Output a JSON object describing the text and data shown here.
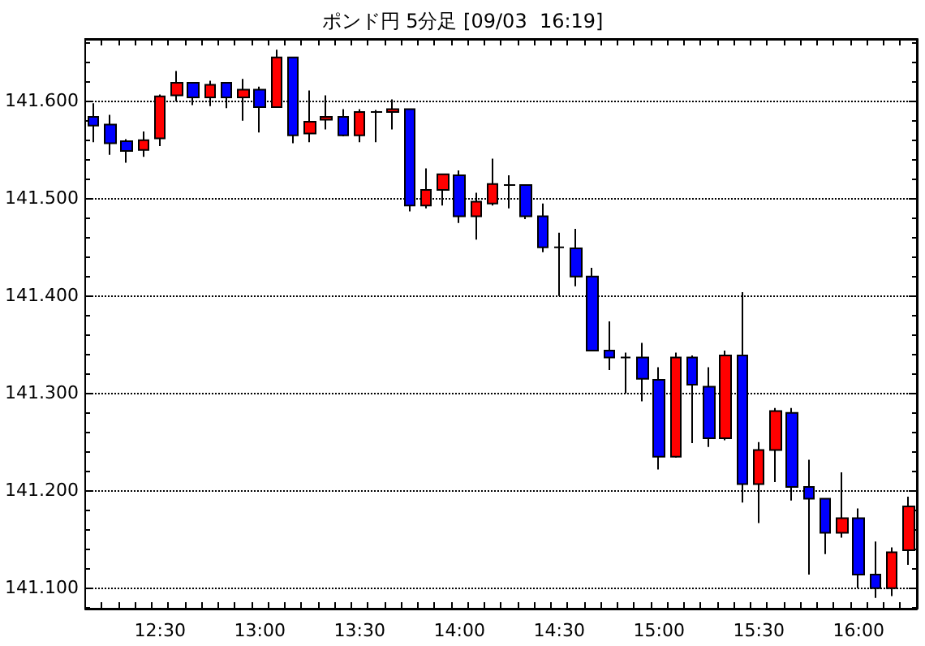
{
  "chart_data": {
    "type": "candlestick",
    "title": "ポンド円 5分足 [09/03  16:19]",
    "categories": [
      null,
      null,
      null,
      null,
      "12:30",
      null,
      null,
      null,
      null,
      null,
      "13:00",
      null,
      null,
      null,
      null,
      null,
      "13:30",
      null,
      null,
      null,
      null,
      null,
      "14:00",
      null,
      null,
      null,
      null,
      null,
      "14:30",
      null,
      null,
      null,
      null,
      null,
      "15:00",
      null,
      null,
      null,
      null,
      null,
      "15:30",
      null,
      null,
      null,
      null,
      null,
      "16:00",
      null,
      null,
      null
    ],
    "ohlc": [
      [
        141.583,
        141.597,
        141.557,
        141.574
      ],
      [
        141.575,
        141.585,
        141.544,
        141.556
      ],
      [
        141.558,
        141.56,
        141.536,
        141.548
      ],
      [
        141.549,
        141.568,
        141.542,
        141.559
      ],
      [
        141.561,
        141.606,
        141.553,
        141.604
      ],
      [
        141.605,
        141.63,
        141.599,
        141.618
      ],
      [
        141.618,
        141.618,
        141.595,
        141.603
      ],
      [
        141.603,
        141.62,
        141.594,
        141.616
      ],
      [
        141.618,
        141.618,
        141.592,
        141.603
      ],
      [
        141.603,
        141.622,
        141.579,
        141.611
      ],
      [
        141.611,
        141.614,
        141.567,
        141.593
      ],
      [
        141.593,
        141.652,
        141.593,
        141.644
      ],
      [
        141.644,
        141.644,
        141.556,
        141.564
      ],
      [
        141.566,
        141.61,
        141.557,
        141.578
      ],
      [
        141.58,
        141.605,
        141.57,
        141.583
      ],
      [
        141.583,
        141.591,
        141.563,
        141.564
      ],
      [
        141.564,
        141.591,
        141.557,
        141.588
      ],
      [
        141.588,
        141.59,
        141.557,
        141.588
      ],
      [
        141.588,
        141.601,
        141.57,
        141.591
      ],
      [
        141.591,
        141.591,
        141.486,
        141.492
      ],
      [
        141.492,
        141.53,
        141.489,
        141.508
      ],
      [
        141.508,
        141.524,
        141.492,
        141.524
      ],
      [
        141.523,
        141.528,
        141.474,
        141.481
      ],
      [
        141.481,
        141.505,
        141.457,
        141.496
      ],
      [
        141.494,
        141.54,
        141.492,
        141.514
      ],
      [
        141.513,
        141.523,
        141.489,
        141.513
      ],
      [
        141.513,
        141.513,
        141.478,
        141.481
      ],
      [
        141.481,
        141.494,
        141.444,
        141.449
      ],
      [
        141.449,
        141.464,
        141.399,
        141.449
      ],
      [
        141.448,
        141.468,
        141.409,
        141.419
      ],
      [
        141.419,
        141.428,
        141.343,
        141.343
      ],
      [
        141.343,
        141.373,
        141.323,
        141.336
      ],
      [
        141.336,
        141.341,
        141.299,
        141.336
      ],
      [
        141.336,
        141.351,
        141.291,
        141.314
      ],
      [
        141.313,
        141.326,
        141.221,
        141.234
      ],
      [
        141.234,
        141.341,
        141.233,
        141.336
      ],
      [
        141.336,
        141.338,
        141.248,
        141.308
      ],
      [
        141.306,
        141.326,
        141.244,
        141.253
      ],
      [
        141.253,
        141.343,
        141.251,
        141.338
      ],
      [
        141.338,
        141.403,
        141.187,
        141.206
      ],
      [
        141.206,
        141.249,
        141.166,
        141.241
      ],
      [
        141.241,
        141.284,
        141.208,
        141.281
      ],
      [
        141.279,
        141.284,
        141.189,
        141.203
      ],
      [
        141.203,
        141.231,
        141.113,
        141.191
      ],
      [
        141.191,
        141.191,
        141.134,
        141.156
      ],
      [
        141.156,
        141.218,
        141.151,
        141.171
      ],
      [
        141.171,
        141.181,
        141.099,
        141.113
      ],
      [
        141.113,
        141.147,
        141.089,
        141.099
      ],
      [
        141.099,
        141.141,
        141.091,
        141.136
      ],
      [
        141.138,
        141.193,
        141.123,
        141.183
      ]
    ],
    "colors": [
      "#0000ff",
      "#0000ff",
      "#0000ff",
      "#ff0000",
      "#ff0000",
      "#ff0000",
      "#0000ff",
      "#ff0000",
      "#0000ff",
      "#ff0000",
      "#0000ff",
      "#ff0000",
      "#0000ff",
      "#ff0000",
      "#ff0000",
      "#0000ff",
      "#ff0000",
      "#000000",
      "#ff0000",
      "#0000ff",
      "#ff0000",
      "#ff0000",
      "#0000ff",
      "#ff0000",
      "#ff0000",
      "#000000",
      "#0000ff",
      "#0000ff",
      "#000000",
      "#0000ff",
      "#0000ff",
      "#0000ff",
      "#000000",
      "#0000ff",
      "#0000ff",
      "#ff0000",
      "#0000ff",
      "#0000ff",
      "#ff0000",
      "#0000ff",
      "#ff0000",
      "#ff0000",
      "#0000ff",
      "#0000ff",
      "#0000ff",
      "#ff0000",
      "#0000ff",
      "#0000ff",
      "#ff0000",
      "#ff0000"
    ],
    "ylim": [
      141.078,
      141.663
    ],
    "yticks": [
      {
        "value": 141.1,
        "label": "141.100"
      },
      {
        "value": 141.2,
        "label": "141.200"
      },
      {
        "value": 141.3,
        "label": "141.300"
      },
      {
        "value": 141.4,
        "label": "141.400"
      },
      {
        "value": 141.5,
        "label": "141.500"
      },
      {
        "value": 141.6,
        "label": "141.600"
      }
    ],
    "grid": "y"
  }
}
